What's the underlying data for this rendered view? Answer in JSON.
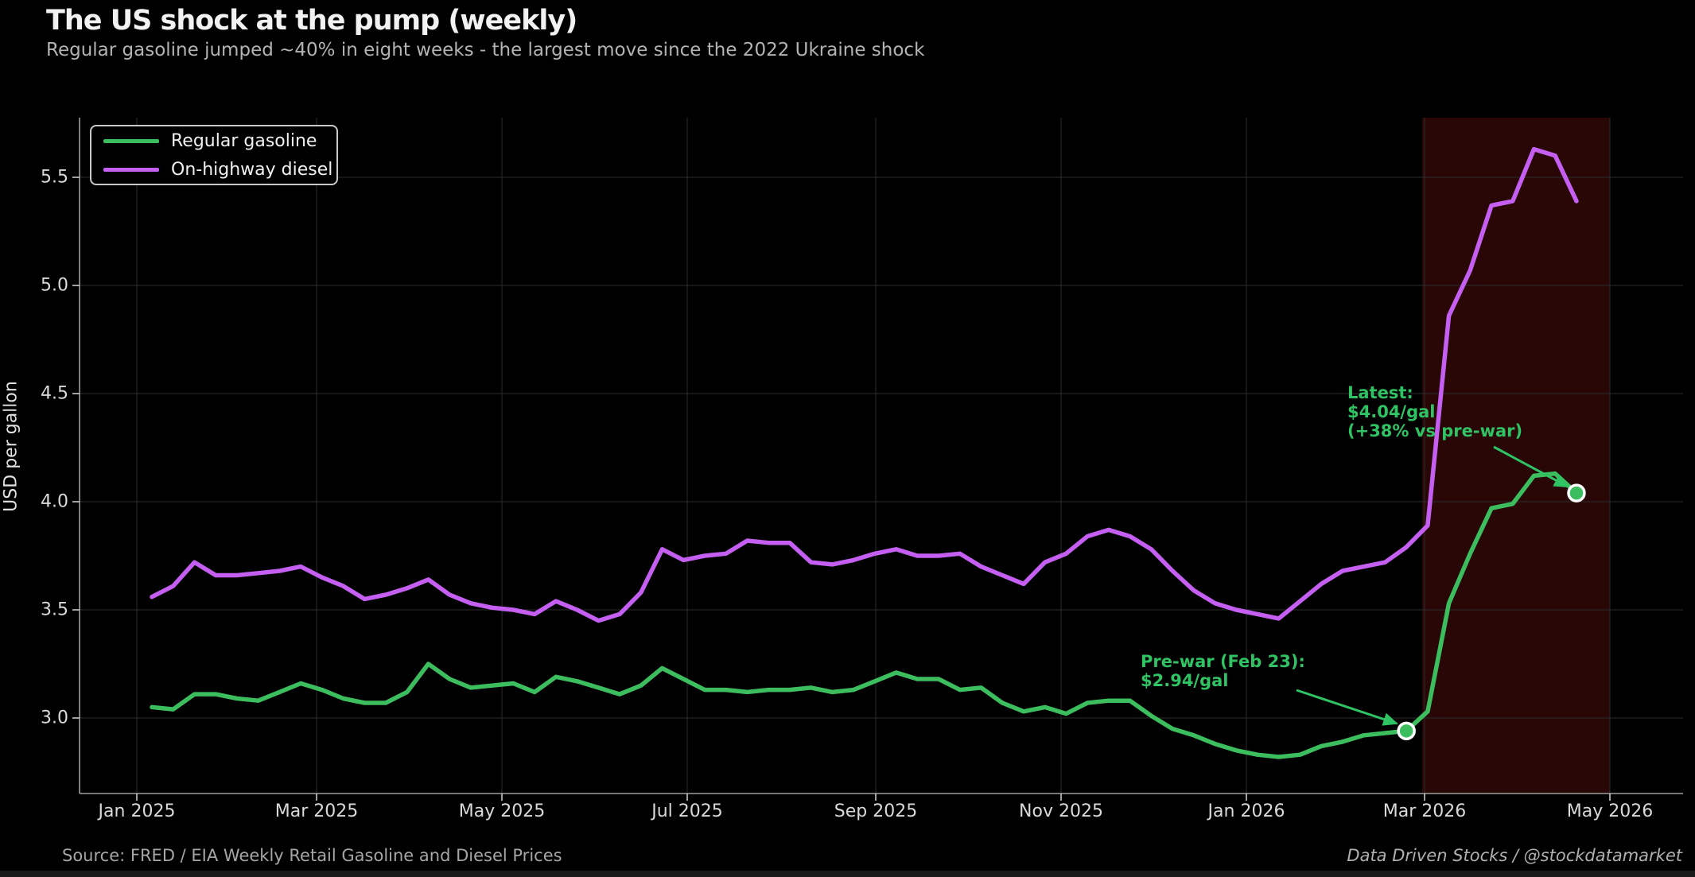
{
  "title": "The US shock at the pump (weekly)",
  "subtitle": "Regular gasoline jumped ~40% in eight weeks - the largest move since the 2022 Ukraine shock",
  "footer": {
    "source": "Source: FRED / EIA Weekly Retail Gasoline and Diesel Prices",
    "credit": "Data Driven Stocks  /  @stockdatamarket"
  },
  "colors": {
    "gasoline": "#3cbe5f",
    "diesel": "#c45ff2",
    "annotation": "#2fc364",
    "war_band": "#290707",
    "grid": "#2d2d2d",
    "axis": "#9e9e9e",
    "tick": "#c8c8c8",
    "marker_edge": "#ffffff",
    "background": "#000000"
  },
  "legend": [
    {
      "label": "Regular gasoline",
      "color_key": "gasoline"
    },
    {
      "label": "On-highway diesel",
      "color_key": "diesel"
    }
  ],
  "axes": {
    "ylabel": "USD per gallon",
    "x_ticks": [
      "Jan 2025",
      "Mar 2025",
      "May 2025",
      "Jul 2025",
      "Sep 2025",
      "Nov 2025",
      "Jan 2026",
      "Mar 2026",
      "May 2026"
    ],
    "y_ticks": [
      "3.0",
      "3.5",
      "4.0",
      "4.5",
      "5.0",
      "5.5"
    ],
    "y_tick_values": [
      3.0,
      3.5,
      4.0,
      4.5,
      5.0,
      5.5
    ],
    "ylim": [
      2.65,
      5.78
    ]
  },
  "annotations": {
    "latest": {
      "text": "Latest:\n$4.04/gal\n(+38% vs pre-war)"
    },
    "prewar": {
      "text": "Pre-war (Feb 23):\n$2.94/gal"
    }
  },
  "chart_data": {
    "type": "line",
    "title": "The US shock at the pump (weekly)",
    "xlabel": "",
    "ylabel": "USD per gallon",
    "x_start": "2025-01-06",
    "x_step_days": 7,
    "x_end": "2026-04-20",
    "grid": true,
    "legend_position": "upper left",
    "war_band_x": [
      "2026-03-01",
      "2026-05-01"
    ],
    "series": [
      {
        "name": "Regular gasoline",
        "color_key": "gasoline",
        "values": [
          3.05,
          3.04,
          3.11,
          3.11,
          3.09,
          3.08,
          3.12,
          3.16,
          3.13,
          3.09,
          3.07,
          3.07,
          3.12,
          3.25,
          3.18,
          3.14,
          3.15,
          3.16,
          3.12,
          3.19,
          3.17,
          3.14,
          3.11,
          3.15,
          3.23,
          3.18,
          3.13,
          3.13,
          3.12,
          3.13,
          3.13,
          3.14,
          3.12,
          3.13,
          3.17,
          3.21,
          3.18,
          3.18,
          3.13,
          3.14,
          3.07,
          3.03,
          3.05,
          3.02,
          3.07,
          3.08,
          3.08,
          3.01,
          2.95,
          2.92,
          2.88,
          2.85,
          2.83,
          2.82,
          2.83,
          2.87,
          2.89,
          2.92,
          2.93,
          2.94,
          3.03,
          3.53,
          3.76,
          3.97,
          3.99,
          4.12,
          4.13,
          4.04
        ]
      },
      {
        "name": "On-highway diesel",
        "color_key": "diesel",
        "values": [
          3.56,
          3.61,
          3.72,
          3.66,
          3.66,
          3.67,
          3.68,
          3.7,
          3.65,
          3.61,
          3.55,
          3.57,
          3.6,
          3.64,
          3.57,
          3.53,
          3.51,
          3.5,
          3.48,
          3.54,
          3.5,
          3.45,
          3.48,
          3.58,
          3.78,
          3.73,
          3.75,
          3.76,
          3.82,
          3.81,
          3.81,
          3.72,
          3.71,
          3.73,
          3.76,
          3.78,
          3.75,
          3.75,
          3.76,
          3.7,
          3.66,
          3.62,
          3.72,
          3.76,
          3.84,
          3.87,
          3.84,
          3.78,
          3.68,
          3.59,
          3.53,
          3.5,
          3.48,
          3.46,
          3.54,
          3.62,
          3.68,
          3.7,
          3.72,
          3.79,
          3.89,
          4.86,
          5.07,
          5.37,
          5.39,
          5.63,
          5.6,
          5.39
        ]
      }
    ],
    "markers": [
      {
        "label": "pre-war",
        "date": "2026-02-23",
        "week_index": 59,
        "value": 2.94
      },
      {
        "label": "latest",
        "date": "2026-04-20",
        "week_index": 67,
        "value": 4.04
      }
    ]
  }
}
